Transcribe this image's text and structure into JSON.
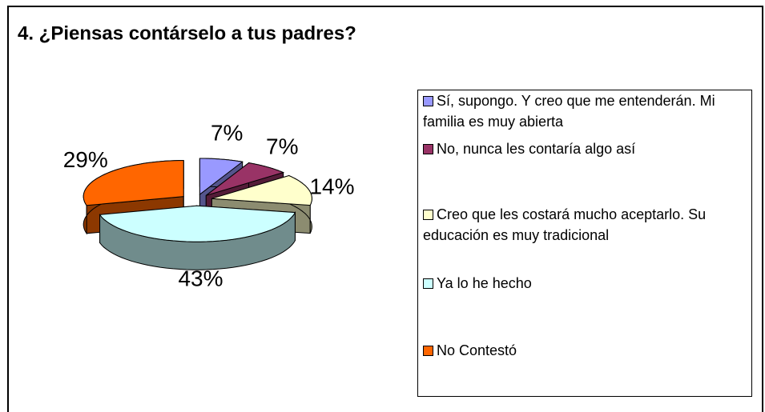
{
  "chart_data": {
    "type": "pie",
    "title": "4. ¿Piensas contárselo a tus padres?",
    "categories": [
      "Sí, supongo. Y creo que me entenderán. Mi familia es muy abierta",
      "No, nunca les contaría algo así",
      "Creo que les costará mucho aceptarlo. Su educación es muy tradicional",
      "Ya lo he hecho",
      "No Contestó"
    ],
    "values": [
      7,
      7,
      14,
      43,
      29
    ],
    "value_labels": [
      "7%",
      "7%",
      "14%",
      "43%",
      "29%"
    ],
    "colors": [
      "#9999ff",
      "#993366",
      "#ffffcc",
      "#ccffff",
      "#ff6600"
    ],
    "legend": "right"
  }
}
